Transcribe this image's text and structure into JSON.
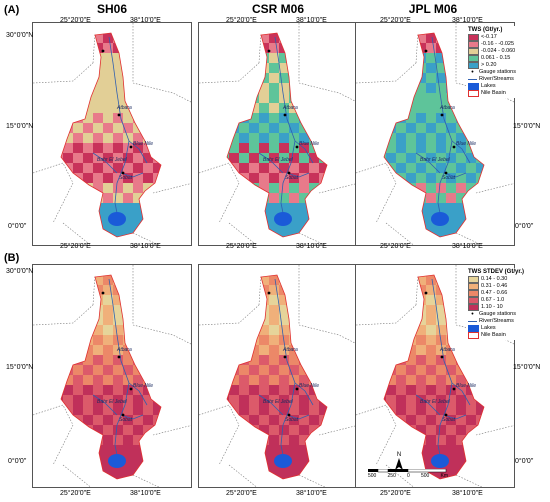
{
  "panels": {
    "a_label": "(A)",
    "b_label": "(B)"
  },
  "columns": [
    "SH06",
    "CSR M06",
    "JPL M06"
  ],
  "coords": {
    "lon_left": "25°20'0\"E",
    "lon_right": "38°10'0\"E",
    "lat_30": "30°0'0\"N",
    "lat_15": "15°0'0\"N",
    "lat_0": "0°0'0\""
  },
  "legend_a": {
    "title": "TWS (Gt/yr.)",
    "classes": [
      {
        "label": "<-0.17",
        "color": "#c8325a"
      },
      {
        "label": "-0.16 - -0.025",
        "color": "#e87a8a"
      },
      {
        "label": "-0.024 - 0.060",
        "color": "#e2cf96"
      },
      {
        "label": "0.061 - 0.15",
        "color": "#5ec49a"
      },
      {
        "label": "> 0.20",
        "color": "#3aa0c8"
      }
    ],
    "gauge": "Gauge stations",
    "river": "River/Streams",
    "lakes": "Lakes",
    "basin": "Nile Basin"
  },
  "legend_b": {
    "title": "TWS STDEV (Gt/yr.)",
    "classes": [
      {
        "label": "0.14 - 0.30",
        "color": "#e6d49a"
      },
      {
        "label": "0.31 - 0.46",
        "color": "#f0b07a"
      },
      {
        "label": "0.47 - 0.66",
        "color": "#ec8868"
      },
      {
        "label": "0.67 - 1.0",
        "color": "#dc5a6a"
      },
      {
        "label": "1.10 - 10",
        "color": "#c0305a"
      }
    ],
    "gauge": "Gauge stations",
    "river": "River/Streams",
    "lakes": "Lakes",
    "basin": "Nile Basin"
  },
  "places": {
    "atbara": "Atbara",
    "blue_nile": "Blue Nile",
    "bahr_el_jebel": "Bahr El Jebel",
    "sobat": "Sobat"
  },
  "north": "N",
  "scale": {
    "labels": [
      "500",
      "250",
      "0",
      "500"
    ],
    "unit": "Km"
  }
}
